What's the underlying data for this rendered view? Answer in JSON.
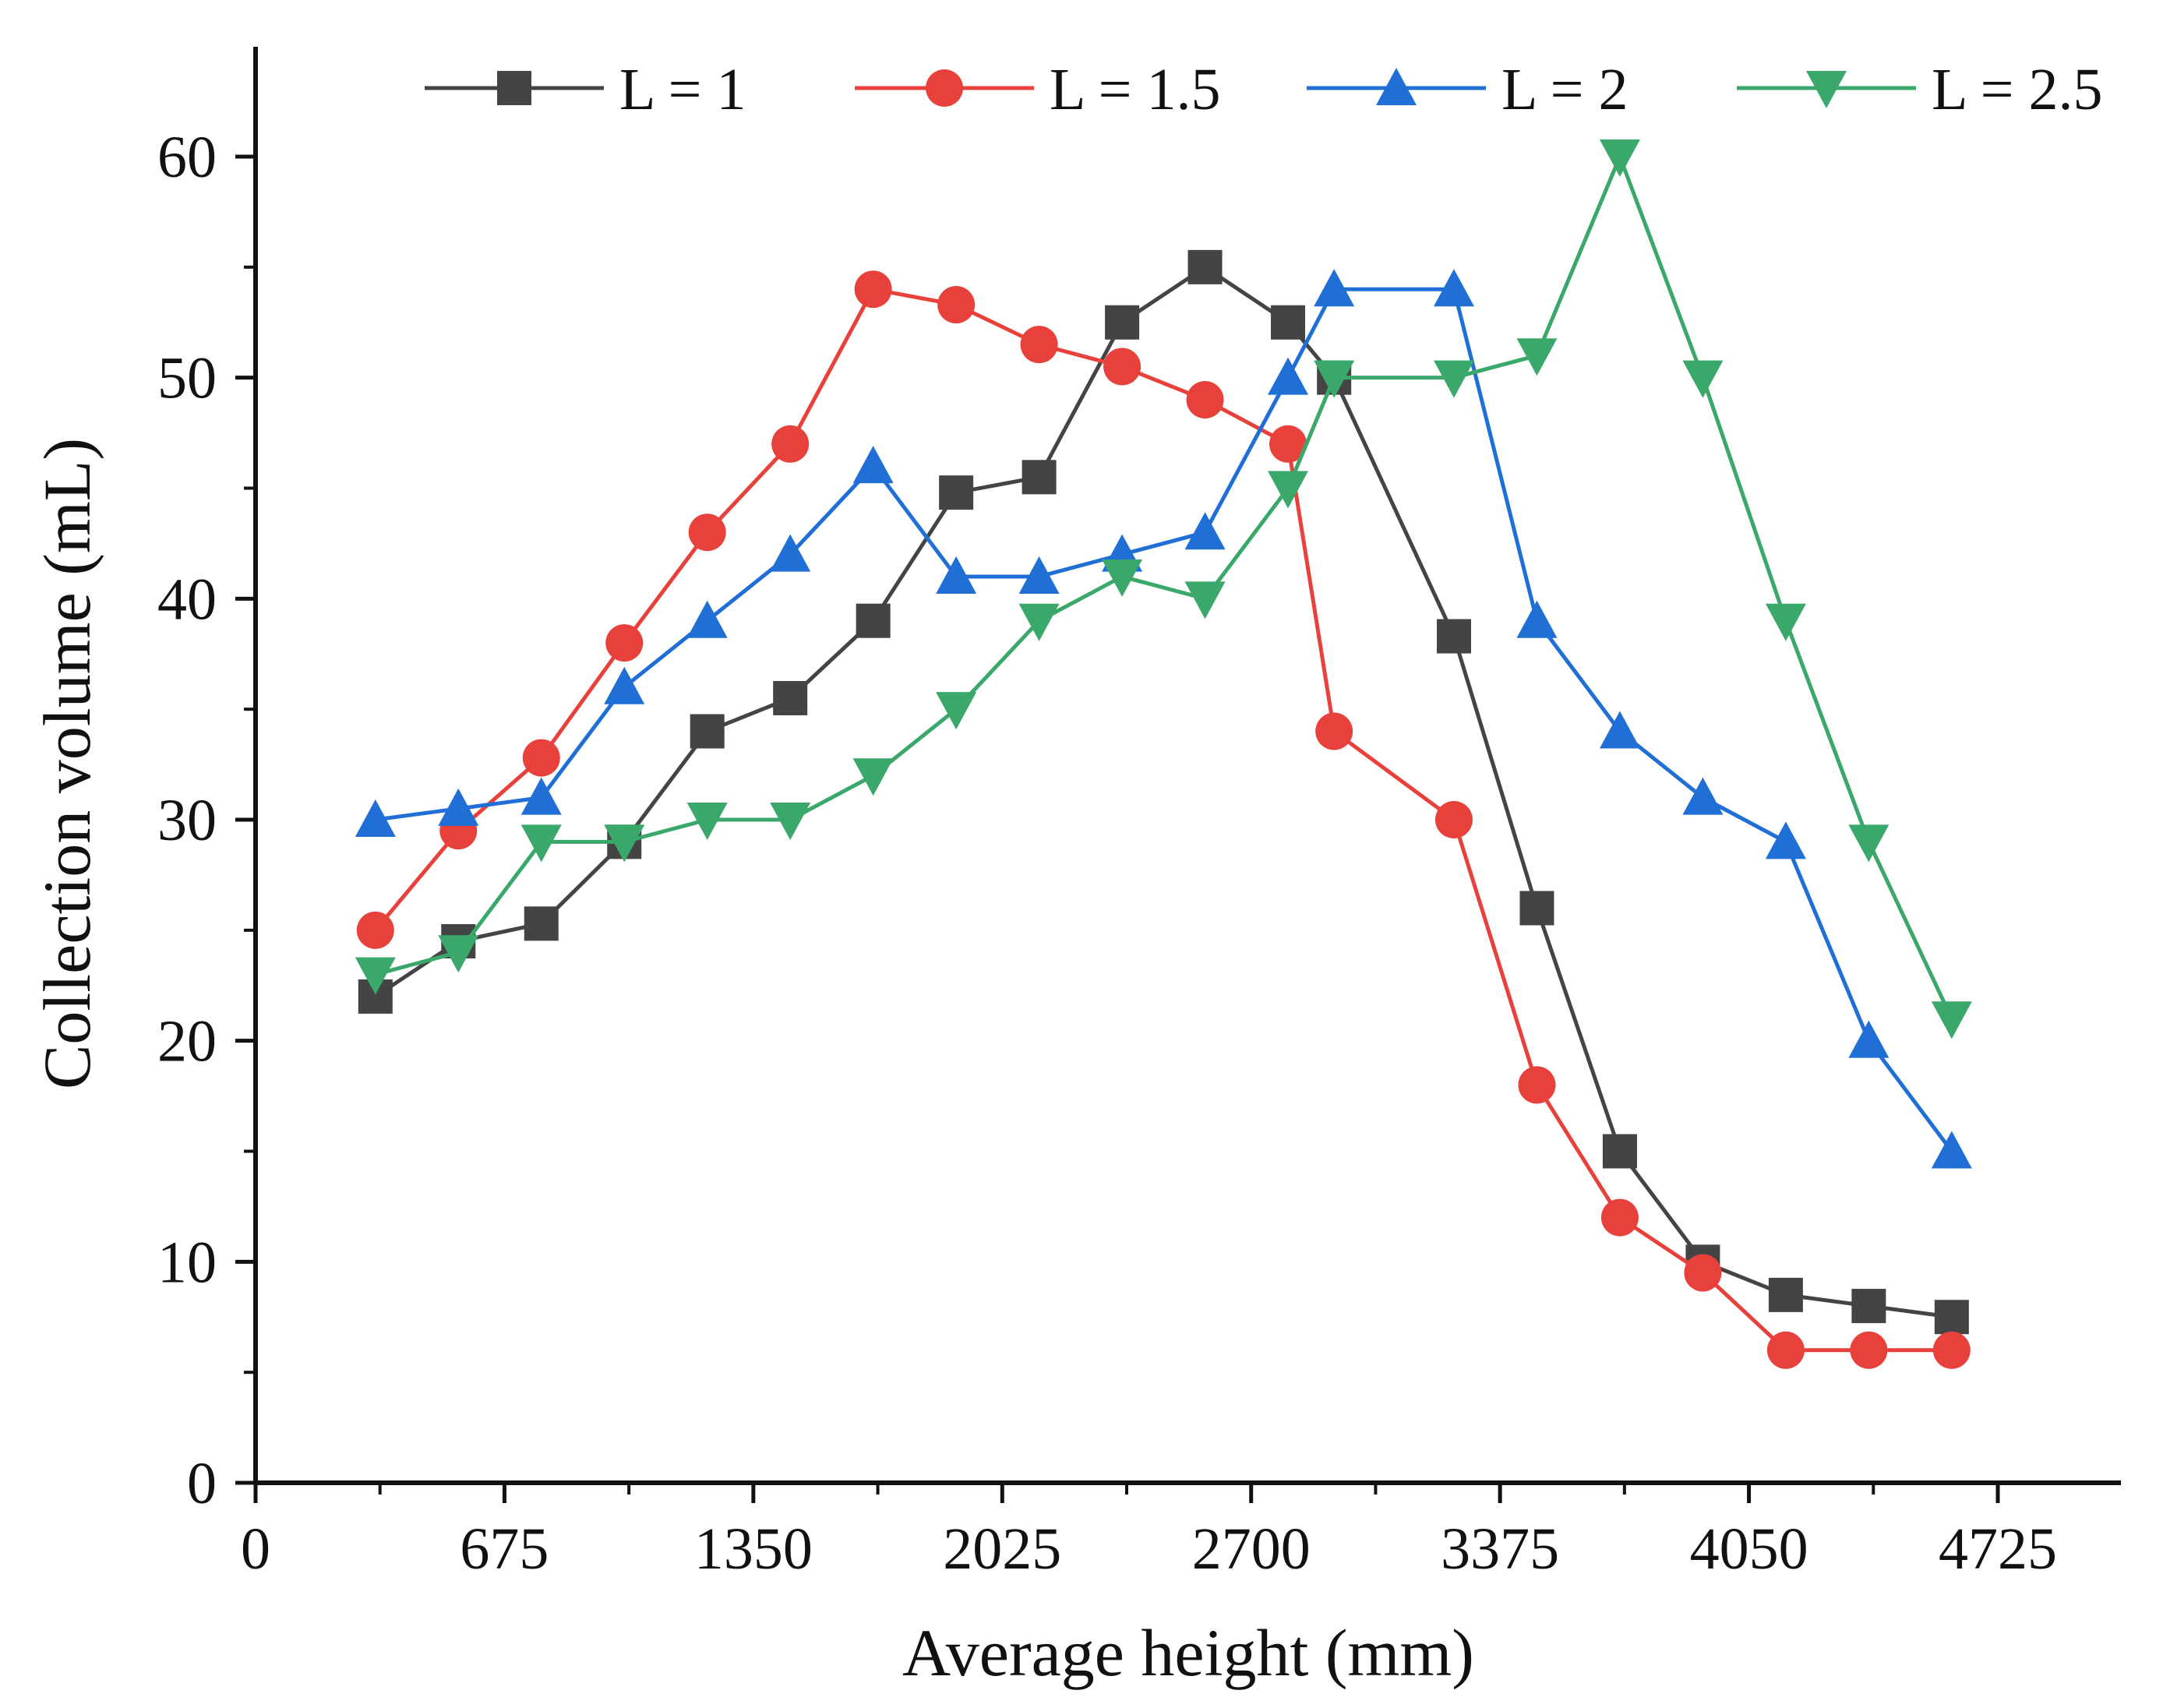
{
  "chart_data": {
    "type": "line",
    "xlabel": "Average height (mm)",
    "ylabel": "Collection volume (mL)",
    "xlim": [
      0,
      4900
    ],
    "ylim": [
      0,
      65
    ],
    "x_ticks": [
      0,
      675,
      1350,
      2025,
      2700,
      3375,
      4050,
      4725
    ],
    "y_ticks": [
      0,
      10,
      20,
      30,
      40,
      50,
      60
    ],
    "grid": false,
    "legend_position": "top",
    "series": [
      {
        "name": "L = 1",
        "color": "#444444",
        "marker": "square",
        "x": [
          325,
          550,
          775,
          1000,
          1225,
          1450,
          1675,
          1900,
          2125,
          2350,
          2575,
          2800,
          2925,
          3250,
          3475,
          3700,
          3925,
          4150,
          4375,
          4600
        ],
        "y": [
          22,
          24.5,
          25.3,
          29,
          34,
          35.5,
          39,
          44.8,
          45.5,
          52.5,
          55,
          52.5,
          50,
          38.3,
          26,
          15,
          10,
          8.5,
          8,
          7.5
        ]
      },
      {
        "name": "L = 1.5",
        "color": "#e8413c",
        "marker": "circle",
        "x": [
          325,
          550,
          775,
          1000,
          1225,
          1450,
          1675,
          1900,
          2125,
          2350,
          2575,
          2800,
          2925,
          3250,
          3475,
          3700,
          3925,
          4150,
          4375,
          4600
        ],
        "y": [
          25,
          29.5,
          32.8,
          38,
          43,
          47,
          54,
          53.3,
          51.5,
          50.5,
          49,
          47,
          34,
          30,
          18,
          12,
          9.5,
          6,
          6,
          6
        ]
      },
      {
        "name": "L = 2",
        "color": "#1f6fd6",
        "marker": "triangle-up",
        "x": [
          325,
          550,
          775,
          1000,
          1225,
          1450,
          1675,
          1900,
          2125,
          2350,
          2575,
          2800,
          2925,
          3250,
          3475,
          3700,
          3925,
          4150,
          4375,
          4600
        ],
        "y": [
          30,
          30.5,
          31,
          36,
          39,
          42,
          46,
          41,
          41,
          42,
          43,
          50,
          54,
          54,
          39,
          34,
          31,
          29,
          20,
          15
        ]
      },
      {
        "name": "L = 2.5",
        "color": "#3aa86a",
        "marker": "triangle-down",
        "x": [
          325,
          550,
          775,
          1000,
          1225,
          1450,
          1675,
          1900,
          2125,
          2350,
          2575,
          2800,
          2925,
          3250,
          3475,
          3700,
          3925,
          4150,
          4375,
          4600
        ],
        "y": [
          23,
          24,
          29,
          29,
          30,
          30,
          32,
          35,
          39,
          41,
          40,
          45,
          50,
          50,
          51,
          60,
          50,
          39,
          29,
          21
        ]
      }
    ]
  }
}
